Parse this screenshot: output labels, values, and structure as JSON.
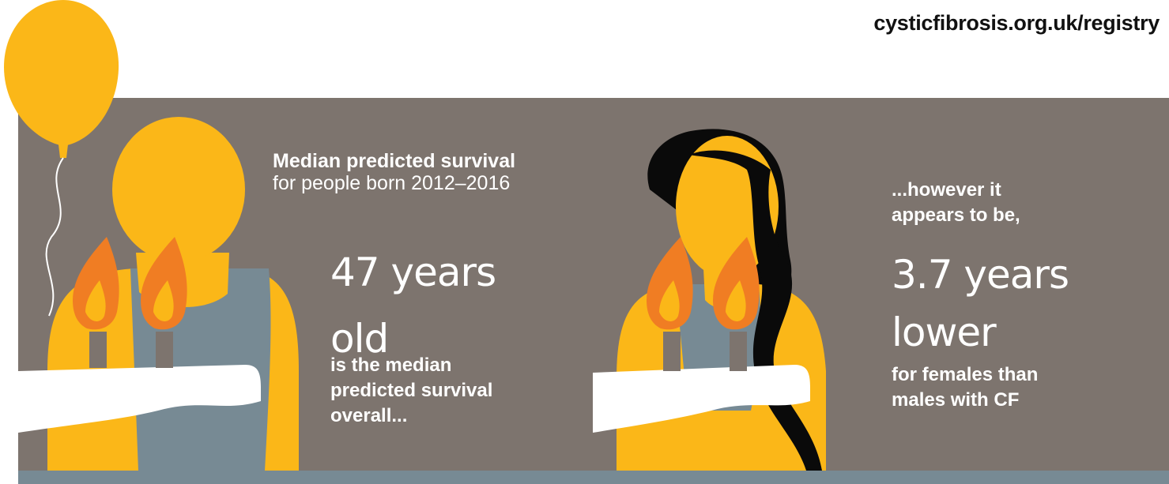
{
  "header": {
    "url": "cysticfibrosis.org.uk/registry"
  },
  "left": {
    "heading_bold": "Median predicted survival",
    "heading_regular": "for people born 2012–2016",
    "big_line1": "47 years",
    "big_line2": "old",
    "caption_line1": "is the median",
    "caption_line2": "predicted survival",
    "caption_line3": "overall..."
  },
  "right": {
    "intro_line1": "...however it",
    "intro_line2": "appears to be,",
    "big_line1": "3.7 years",
    "big_line2": "lower",
    "caption_line1": "for females than",
    "caption_line2": "males with CF"
  },
  "colors": {
    "panel": "#7d746e",
    "band": "#778a94",
    "skin": "#fbb718",
    "shirt": "#778a94",
    "hair": "#0a0a0a",
    "flame_outer": "#f07d23",
    "flame_inner": "#fbb718",
    "cake": "#ffffff",
    "candle": "#7d746e"
  }
}
